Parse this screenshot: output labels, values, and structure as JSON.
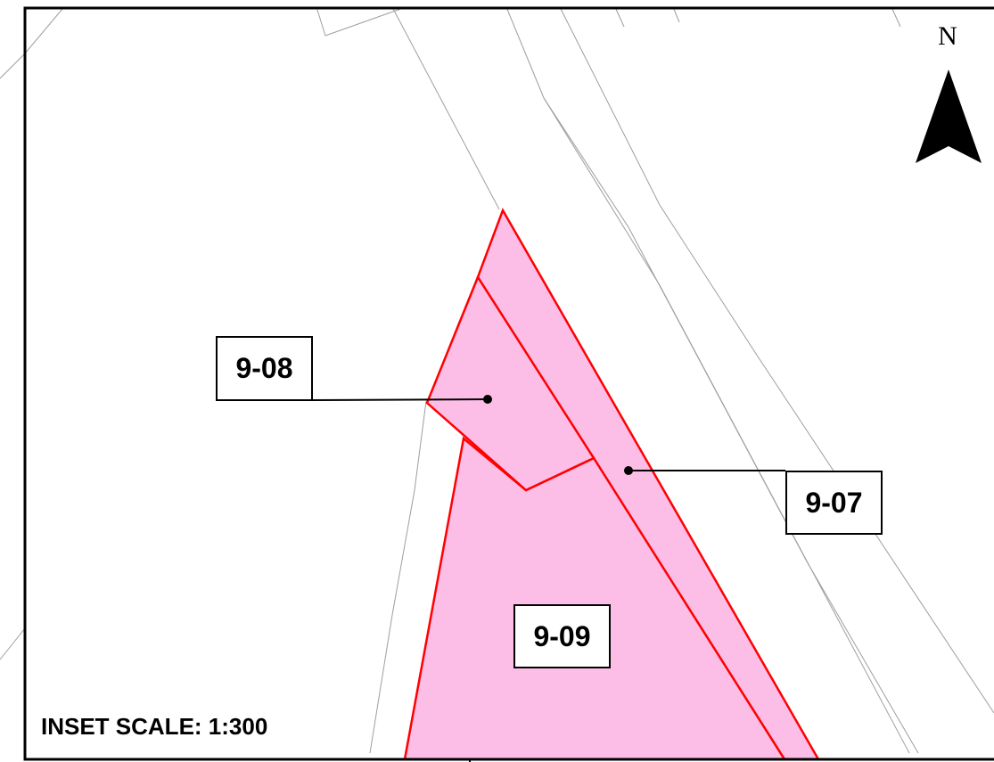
{
  "map": {
    "parcels": [
      {
        "id": "9-08",
        "fill": "#fcbde6",
        "outline": "#ff0000"
      },
      {
        "id": "9-07",
        "fill": "#fcbde6",
        "outline": "#ff0000"
      },
      {
        "id": "9-09",
        "fill": "#fcbde6",
        "outline": "#ff0000"
      }
    ],
    "north_arrow": {
      "label": "N",
      "icon": "north-arrow-icon"
    },
    "inset_scale": "INSET SCALE: 1:300",
    "colors": {
      "parcel_fill": "#fcbde6",
      "parcel_outline": "#ff0000",
      "background_lines": "#aaaaaa",
      "frame": "#000000"
    }
  }
}
